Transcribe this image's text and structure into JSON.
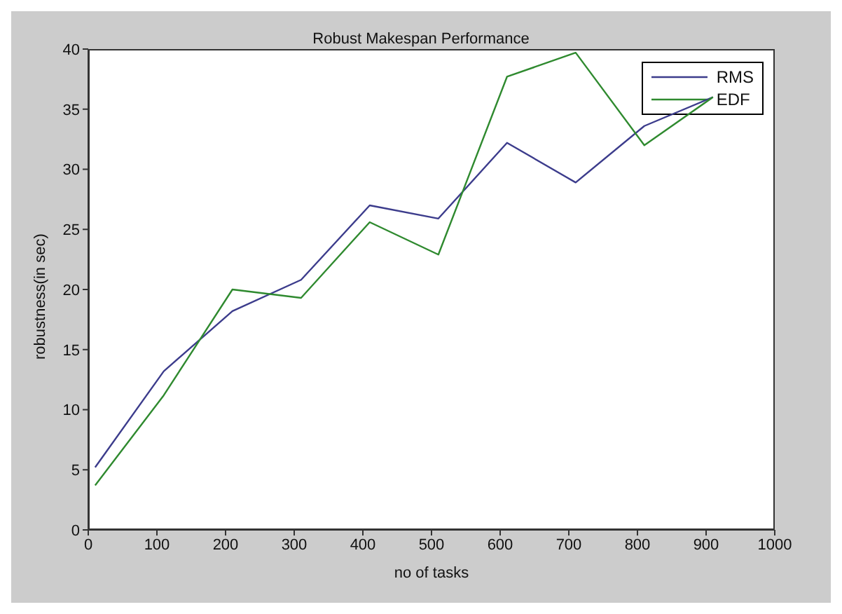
{
  "chart_data": {
    "type": "line",
    "title": "Robust Makespan Performance",
    "xlabel": "no of tasks",
    "ylabel": "robustness(in sec)",
    "x": [
      10,
      110,
      210,
      310,
      410,
      510,
      610,
      710,
      810,
      910
    ],
    "series": [
      {
        "name": "RMS",
        "color": "#3c3c8c",
        "values": [
          5.2,
          13.2,
          18.2,
          20.8,
          27.0,
          25.9,
          32.2,
          28.9,
          33.6,
          36.0
        ]
      },
      {
        "name": "EDF",
        "color": "#2f8a2f",
        "values": [
          3.7,
          11.2,
          20.0,
          19.3,
          25.6,
          22.9,
          37.7,
          39.7,
          32.0,
          36.0
        ]
      }
    ],
    "xlim": [
      0,
      1000
    ],
    "xticks": [
      0,
      100,
      200,
      300,
      400,
      500,
      600,
      700,
      800,
      900,
      1000
    ],
    "ylim": [
      0,
      40
    ],
    "yticks": [
      0,
      5,
      10,
      15,
      20,
      25,
      30,
      35,
      40
    ],
    "legend": "top right",
    "marker": "none",
    "line_style": "solid"
  }
}
